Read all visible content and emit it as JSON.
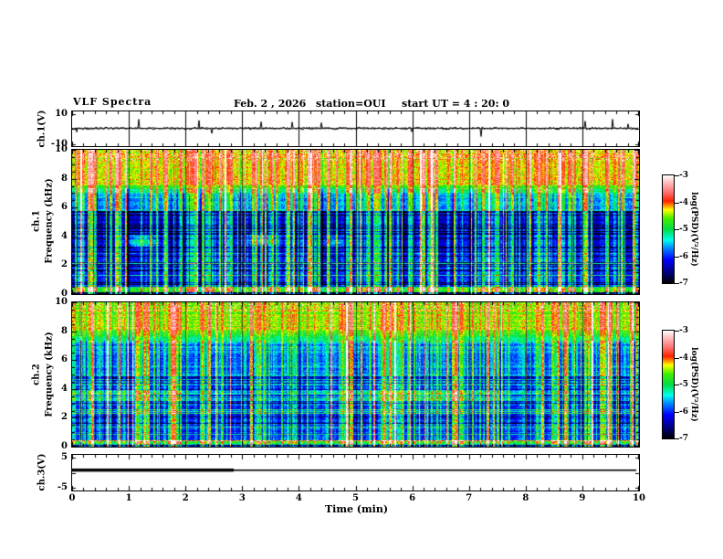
{
  "header": {
    "title": "VLF Spectra",
    "date": "Feb. 2 , 2026",
    "station": "station=OUI",
    "start_ut": "start UT =  4 : 20: 0"
  },
  "x_axis": {
    "label": "Time (min)",
    "ticks": [
      0,
      1,
      2,
      3,
      4,
      5,
      6,
      7,
      8,
      9,
      10
    ],
    "range": [
      0,
      10
    ],
    "minor_step": 0.2
  },
  "panels": {
    "ch1_wave": {
      "ylabel": "ch.1(V)",
      "yticks": [
        10,
        -10
      ],
      "ylim": [
        -10,
        10
      ]
    },
    "ch1_spec": {
      "ylabel_line1": "ch.1",
      "ylabel_line2": "Frequency (kHz)",
      "yticks": [
        10,
        8,
        6,
        4,
        2,
        0
      ],
      "ylim": [
        0,
        10
      ]
    },
    "ch2_spec": {
      "ylabel_line1": "ch.2",
      "ylabel_line2": "Frequency (kHz)",
      "yticks": [
        10,
        8,
        6,
        4,
        2,
        0
      ],
      "ylim": [
        0,
        10
      ]
    },
    "ch3_wave": {
      "ylabel": "ch.3(V)",
      "yticks": [
        5,
        -5
      ],
      "ylim": [
        -5,
        5
      ]
    }
  },
  "colorbars": [
    {
      "label": "log(PSD)(V²/Hz)",
      "ticks": [
        -3,
        -4,
        -5,
        -6,
        -7
      ],
      "range": [
        -7,
        -3
      ]
    },
    {
      "label": "log(PSD)(V²/Hz)",
      "ticks": [
        -3,
        -4,
        -5,
        -6,
        -7
      ],
      "range": [
        -7,
        -3
      ]
    }
  ],
  "colormap": {
    "range": [
      -7,
      -3
    ],
    "stops": [
      [
        0.0,
        "#000000"
      ],
      [
        0.08,
        "#000066"
      ],
      [
        0.22,
        "#0000ff"
      ],
      [
        0.33,
        "#0090ff"
      ],
      [
        0.4,
        "#00ffee"
      ],
      [
        0.5,
        "#00dd44"
      ],
      [
        0.6,
        "#44ee00"
      ],
      [
        0.68,
        "#ffff00"
      ],
      [
        0.76,
        "#ff2200"
      ],
      [
        0.85,
        "#ff7777"
      ],
      [
        0.93,
        "#ffbbbb"
      ],
      [
        1.0,
        "#ffffff"
      ]
    ]
  },
  "chart_data": [
    {
      "type": "line",
      "name": "ch1_waveform",
      "ylabel": "ch.1(V)",
      "xlim": [
        0,
        10
      ],
      "ylim": [
        -10,
        10
      ],
      "yticks": [
        10,
        -10
      ],
      "description": "dense noise trace around ~0.3 V with amplitude ~1 V and intermittent spikes reaching about +/-8 V; vertical gridlines at every minute",
      "noise_amplitude_V": 1,
      "spike_amplitude_V": 8
    },
    {
      "type": "heatmap",
      "name": "ch1_spectrogram",
      "ylabel": "ch.1 Frequency (kHz)",
      "xlim": [
        0,
        10
      ],
      "ylim": [
        0,
        10
      ],
      "yticks": [
        0,
        2,
        4,
        6,
        8,
        10
      ],
      "value_label": "log(PSD)(V²/Hz)",
      "value_range": [
        -7,
        -3
      ],
      "features": [
        "bright green-yellow band from ~7.5 to 10 kHz (PSD ~ -4.5 to -4) with red speckles near 10 kHz",
        "dense vertical lightning-sferic streaks (green/cyan, a few yellow-red) spanning all frequencies",
        "dark blue background (~ -6.4) between 3 and 6 kHz",
        "black horizontal striations below ~5.5 kHz",
        "cyan/green horizontal lines below 3 kHz and a bright line near 0.3 kHz",
        "diffuse cyan patches near 3.7 kHz around 1.2, 3.4 and 4.6 min",
        "thin black vertical gridlines every 1 min"
      ]
    },
    {
      "type": "heatmap",
      "name": "ch2_spectrogram",
      "ylabel": "ch.2 Frequency (kHz)",
      "xlim": [
        0,
        10
      ],
      "ylim": [
        0,
        10
      ],
      "yticks": [
        0,
        2,
        4,
        6,
        8,
        10
      ],
      "value_label": "log(PSD)(V²/Hz)",
      "value_range": [
        -7,
        -3
      ],
      "features": [
        "green band from ~8 to 10 kHz with sparse red speckles at top",
        "diffuse cyan-green horizontal band centered near 3.5 kHz across the whole record",
        "mid frequencies brighter blue/cyan than ch.1",
        "dense vertical sferic streaks across all frequencies",
        "black horizontal striations below ~5 kHz and bright line near 0.3 kHz",
        "thin black vertical gridlines every 1 min"
      ]
    },
    {
      "type": "line",
      "name": "ch3_waveform",
      "ylabel": "ch.3(V)",
      "xlim": [
        0,
        10
      ],
      "ylim": [
        -5,
        5
      ],
      "yticks": [
        5,
        -5
      ],
      "segments": [
        {
          "x_min": [
            0,
            2.85
          ],
          "y_V": 0.3,
          "style": "thick"
        },
        {
          "x_min": [
            2.85,
            10
          ],
          "y_V": 0.3,
          "style": "thin"
        }
      ],
      "description": "flat line slightly above 0 V: thick from 0 to ~2.85 min, thin from ~2.85 to 10 min"
    }
  ]
}
